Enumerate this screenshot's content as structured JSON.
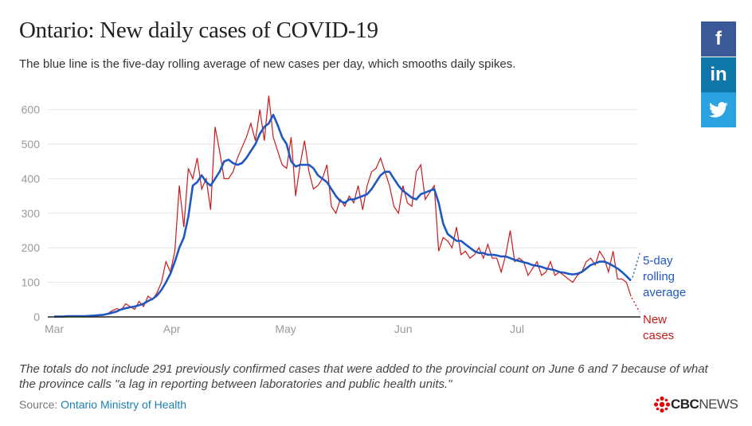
{
  "header": {
    "title": "Ontario: New daily cases of COVID-19",
    "subtitle": "The blue line is the five-day rolling average of new cases per day, which smooths daily spikes."
  },
  "footer": {
    "note": "The totals do not include 291 previously confirmed cases that were added to the provincial count on June 6 and 7 because of what the province calls \"a lag in reporting between laboratories and public health units.\"",
    "source_label": "Source:",
    "source_link": "Ontario Ministry of Health",
    "brand_bold": "CBC",
    "brand_light": "NEWS"
  },
  "social": {
    "facebook": "f",
    "linkedin": "in",
    "twitter": "twitter-bird-icon"
  },
  "annotations": {
    "avg": [
      "5-day",
      "rolling",
      "average"
    ],
    "new": [
      "New",
      "cases"
    ]
  },
  "colors": {
    "new_cases": "#c8191c",
    "rolling_average": "#1f57c3",
    "facebook": "#3b5998",
    "linkedin": "#0e76a8",
    "twitter": "#2aa3e0"
  },
  "chart_data": {
    "type": "line",
    "title": "Ontario: New daily cases of COVID-19",
    "x_start": "2020-03-01",
    "x_end": "2020-07-31",
    "month_ticks": [
      {
        "label": "Mar",
        "date": "2020-03-01"
      },
      {
        "label": "Apr",
        "date": "2020-04-01"
      },
      {
        "label": "May",
        "date": "2020-05-01"
      },
      {
        "label": "Jun",
        "date": "2020-06-01"
      },
      {
        "label": "Jul",
        "date": "2020-07-01"
      }
    ],
    "yticks": [
      0,
      100,
      200,
      300,
      400,
      500,
      600
    ],
    "ylim": [
      0,
      650
    ],
    "grid": "horizontal",
    "series": [
      {
        "name": "New cases",
        "color": "#c8191c",
        "values": [
          0,
          0,
          1,
          2,
          1,
          3,
          2,
          1,
          3,
          2,
          4,
          6,
          10,
          18,
          24,
          20,
          38,
          30,
          22,
          45,
          30,
          60,
          50,
          70,
          100,
          160,
          130,
          190,
          380,
          260,
          430,
          400,
          460,
          370,
          400,
          310,
          550,
          480,
          400,
          400,
          420,
          460,
          490,
          520,
          560,
          510,
          600,
          510,
          640,
          520,
          480,
          440,
          430,
          520,
          350,
          440,
          510,
          420,
          370,
          380,
          400,
          440,
          320,
          300,
          340,
          320,
          350,
          330,
          380,
          310,
          380,
          420,
          430,
          460,
          420,
          380,
          320,
          300,
          380,
          330,
          320,
          420,
          440,
          340,
          360,
          380,
          190,
          230,
          220,
          200,
          260,
          180,
          190,
          170,
          180,
          200,
          170,
          210,
          170,
          170,
          130,
          180,
          250,
          160,
          170,
          160,
          120,
          140,
          160,
          120,
          130,
          160,
          120,
          130,
          120,
          110,
          100,
          120,
          130,
          160,
          170,
          150,
          190,
          170,
          130,
          190,
          110,
          110,
          100,
          60
        ],
        "last_value": 60
      },
      {
        "name": "5-day rolling average",
        "color": "#1f57c3",
        "values": [
          1,
          1,
          1,
          2,
          2,
          2,
          2,
          2,
          3,
          4,
          5,
          6,
          9,
          12,
          16,
          22,
          25,
          28,
          30,
          34,
          38,
          46,
          52,
          62,
          78,
          100,
          125,
          160,
          200,
          230,
          290,
          380,
          390,
          410,
          390,
          380,
          400,
          420,
          450,
          455,
          445,
          440,
          445,
          460,
          480,
          500,
          530,
          550,
          560,
          585,
          555,
          520,
          500,
          450,
          435,
          440,
          440,
          440,
          430,
          410,
          400,
          390,
          370,
          350,
          335,
          330,
          340,
          340,
          345,
          350,
          355,
          370,
          390,
          410,
          420,
          420,
          400,
          380,
          365,
          355,
          345,
          340,
          355,
          360,
          365,
          370,
          330,
          270,
          240,
          230,
          220,
          220,
          210,
          200,
          190,
          185,
          185,
          180,
          180,
          178,
          175,
          175,
          170,
          165,
          162,
          158,
          155,
          150,
          148,
          145,
          140,
          138,
          135,
          130,
          128,
          125,
          123,
          125,
          130,
          140,
          150,
          155,
          160,
          160,
          155,
          148,
          140,
          130,
          118,
          105
        ],
        "last_value": 105
      }
    ],
    "annotation_avg": "5-day rolling average",
    "annotation_new": "New cases"
  }
}
